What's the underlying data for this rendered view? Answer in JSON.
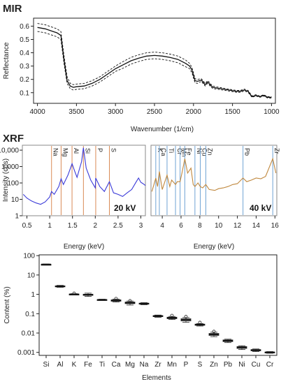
{
  "chart_data": [
    {
      "type": "line",
      "title": "MIR",
      "xlabel": "Wavenumber (1/cm)",
      "ylabel": "Reflectance",
      "xlim": [
        4050,
        950
      ],
      "ylim": [
        0.02,
        0.66
      ],
      "xticks": [
        4000,
        3500,
        3000,
        2500,
        2000,
        1500,
        1000
      ],
      "yticks": [
        0.1,
        0.2,
        0.3,
        0.4,
        0.5,
        0.6
      ],
      "series": [
        {
          "style": "solid",
          "x": [
            4000,
            3900,
            3800,
            3750,
            3700,
            3660,
            3620,
            3580,
            3540,
            3500,
            3400,
            3300,
            3200,
            3100,
            3000,
            2900,
            2800,
            2700,
            2600,
            2500,
            2400,
            2300,
            2200,
            2100,
            2050,
            2020,
            2000,
            1980,
            1950,
            1900,
            1850,
            1820,
            1800,
            1780,
            1750,
            1700,
            1650,
            1600,
            1550,
            1500,
            1450,
            1400,
            1350,
            1300,
            1250,
            1200,
            1150,
            1100,
            1050,
            1000
          ],
          "y": [
            0.59,
            0.58,
            0.56,
            0.55,
            0.53,
            0.35,
            0.19,
            0.15,
            0.14,
            0.145,
            0.15,
            0.17,
            0.2,
            0.24,
            0.28,
            0.31,
            0.34,
            0.36,
            0.375,
            0.38,
            0.375,
            0.365,
            0.35,
            0.32,
            0.3,
            0.27,
            0.23,
            0.19,
            0.185,
            0.195,
            0.16,
            0.18,
            0.17,
            0.155,
            0.14,
            0.135,
            0.13,
            0.125,
            0.12,
            0.115,
            0.11,
            0.11,
            0.12,
            0.11,
            0.07,
            0.08,
            0.07,
            0.08,
            0.065,
            0.065
          ]
        },
        {
          "style": "dashed",
          "x": [
            4000,
            3900,
            3800,
            3750,
            3700,
            3660,
            3620,
            3580,
            3540,
            3500,
            3400,
            3300,
            3200,
            3100,
            3000,
            2900,
            2800,
            2700,
            2600,
            2500,
            2400,
            2300,
            2200,
            2100,
            2050,
            2020,
            2000,
            1980,
            1950,
            1900,
            1850,
            1820,
            1800,
            1780,
            1750,
            1700,
            1650,
            1600,
            1550,
            1500,
            1450,
            1400,
            1350,
            1300,
            1250,
            1200,
            1150,
            1100,
            1050,
            1000
          ],
          "y": [
            0.62,
            0.61,
            0.59,
            0.58,
            0.56,
            0.38,
            0.22,
            0.17,
            0.16,
            0.165,
            0.17,
            0.19,
            0.22,
            0.26,
            0.3,
            0.335,
            0.365,
            0.385,
            0.4,
            0.405,
            0.4,
            0.39,
            0.375,
            0.345,
            0.32,
            0.29,
            0.25,
            0.205,
            0.2,
            0.205,
            0.17,
            0.19,
            0.18,
            0.165,
            0.15,
            0.143,
            0.138,
            0.132,
            0.127,
            0.122,
            0.117,
            0.117,
            0.127,
            0.117,
            0.075,
            0.085,
            0.075,
            0.085,
            0.07,
            0.07
          ]
        },
        {
          "style": "dashed",
          "x": [
            4000,
            3900,
            3800,
            3750,
            3700,
            3660,
            3620,
            3580,
            3540,
            3500,
            3400,
            3300,
            3200,
            3100,
            3000,
            2900,
            2800,
            2700,
            2600,
            2500,
            2400,
            2300,
            2200,
            2100,
            2050,
            2020,
            2000,
            1980,
            1950,
            1900,
            1850,
            1820,
            1800,
            1780,
            1750,
            1700,
            1650,
            1600,
            1550,
            1500,
            1450,
            1400,
            1350,
            1300,
            1250,
            1200,
            1150,
            1100,
            1050,
            1000
          ],
          "y": [
            0.56,
            0.55,
            0.53,
            0.52,
            0.5,
            0.32,
            0.17,
            0.13,
            0.12,
            0.125,
            0.13,
            0.15,
            0.18,
            0.22,
            0.26,
            0.285,
            0.315,
            0.335,
            0.35,
            0.355,
            0.35,
            0.34,
            0.325,
            0.295,
            0.28,
            0.25,
            0.21,
            0.175,
            0.17,
            0.185,
            0.15,
            0.17,
            0.16,
            0.145,
            0.13,
            0.127,
            0.122,
            0.118,
            0.113,
            0.108,
            0.103,
            0.103,
            0.113,
            0.103,
            0.065,
            0.075,
            0.065,
            0.075,
            0.06,
            0.06
          ]
        }
      ]
    },
    {
      "type": "line",
      "title": "XRF",
      "ylabel": "Intensity (cps)",
      "xlabel": "Energy (keV)",
      "yscale": "log",
      "ylim": [
        1,
        20000
      ],
      "yticks": [
        "1",
        "10",
        "100",
        "1,000",
        "10,000"
      ],
      "yticks_values": [
        1,
        10,
        100,
        1000,
        10000
      ],
      "panels": [
        {
          "annotation": "20 kV",
          "xlim": [
            0.4,
            3.1
          ],
          "xticks": [
            0.5,
            1,
            1.5,
            2,
            2.5,
            3
          ],
          "xtick_labels": [
            "0.5",
            "1",
            "1.5",
            "2",
            "2.5",
            "3"
          ],
          "line_color": "#3a3ad8",
          "marker_color": "#d98a55",
          "element_markers": [
            {
              "label": "Na",
              "x": 1.04
            },
            {
              "label": "Mg",
              "x": 1.25
            },
            {
              "label": "Al",
              "x": 1.49
            },
            {
              "label": "Si",
              "x": 1.74
            },
            {
              "label": "P",
              "x": 2.01
            },
            {
              "label": "S",
              "x": 2.31
            }
          ],
          "x": [
            0.42,
            0.5,
            0.6,
            0.7,
            0.8,
            0.9,
            1.0,
            1.04,
            1.1,
            1.2,
            1.25,
            1.3,
            1.4,
            1.49,
            1.55,
            1.6,
            1.7,
            1.74,
            1.8,
            1.9,
            2.0,
            2.01,
            2.1,
            2.2,
            2.31,
            2.4,
            2.5,
            2.6,
            2.7,
            2.8,
            2.9,
            2.95,
            3.0,
            3.05,
            3.1
          ],
          "y": [
            20,
            12,
            8,
            6,
            5,
            7,
            14,
            30,
            20,
            60,
            180,
            80,
            300,
            1500,
            500,
            220,
            2000,
            14000,
            800,
            150,
            50,
            200,
            60,
            30,
            120,
            25,
            20,
            15,
            25,
            40,
            120,
            200,
            110,
            90,
            70
          ]
        },
        {
          "annotation": "40 kV",
          "xlim": [
            2.8,
            16.2
          ],
          "xticks": [
            4,
            6,
            8,
            10,
            12,
            14,
            16
          ],
          "xtick_labels": [
            "4",
            "6",
            "8",
            "10",
            "12",
            "14",
            "16"
          ],
          "line_color": "#c0883e",
          "marker_color": "#6fa3d4",
          "element_markers": [
            {
              "label": "K",
              "x": 3.31
            },
            {
              "label": "Ca",
              "x": 3.69
            },
            {
              "label": "Ti",
              "x": 4.51
            },
            {
              "label": "Cr",
              "x": 5.41
            },
            {
              "label": "Mn",
              "x": 5.9
            },
            {
              "label": "Fe",
              "x": 6.4
            },
            {
              "label": "Ni",
              "x": 7.48
            },
            {
              "label": "Cu",
              "x": 8.05
            },
            {
              "label": "Zn",
              "x": 8.64
            },
            {
              "label": "Pb",
              "x": 12.6
            },
            {
              "label": "Zr",
              "x": 15.77
            }
          ],
          "x": [
            2.9,
            3.31,
            3.5,
            3.69,
            4.0,
            4.51,
            4.8,
            5.0,
            5.41,
            5.6,
            5.9,
            6.1,
            6.4,
            6.7,
            7.06,
            7.3,
            7.48,
            7.8,
            8.05,
            8.3,
            8.64,
            9.0,
            9.6,
            10.0,
            10.5,
            11.0,
            11.5,
            12.0,
            12.6,
            13.0,
            13.5,
            14.0,
            14.5,
            15.0,
            15.77,
            16.1
          ],
          "y": [
            30,
            200,
            60,
            500,
            40,
            300,
            60,
            150,
            80,
            120,
            120,
            400,
            3000,
            400,
            800,
            80,
            60,
            100,
            60,
            50,
            80,
            40,
            35,
            45,
            50,
            60,
            80,
            90,
            200,
            120,
            150,
            200,
            180,
            250,
            3000,
            400
          ]
        }
      ]
    },
    {
      "type": "boxplot",
      "xlabel": "Elements",
      "ylabel": "Content (%)",
      "yscale": "log",
      "ylim": [
        0.0007,
        110
      ],
      "yticks": [
        "100",
        "10",
        "1",
        "0.1",
        "0.01",
        "0.001"
      ],
      "yticks_values": [
        100,
        10,
        1,
        0.1,
        0.01,
        0.001
      ],
      "categories": [
        "Si",
        "Al",
        "K",
        "Fe",
        "Ti",
        "Ca",
        "Mg",
        "Na",
        "Zr",
        "Mn",
        "P",
        "S",
        "Zn",
        "Pb",
        "Ni",
        "Cu",
        "Cr"
      ],
      "median": [
        35,
        2.6,
        1.0,
        0.95,
        0.52,
        0.48,
        0.36,
        0.33,
        0.075,
        0.06,
        0.048,
        0.027,
        0.0085,
        0.004,
        0.0018,
        0.0013,
        0.001
      ],
      "q1": [
        34,
        2.45,
        0.96,
        0.88,
        0.5,
        0.44,
        0.33,
        0.31,
        0.07,
        0.055,
        0.042,
        0.025,
        0.0075,
        0.0036,
        0.0016,
        0.0012,
        0.00095
      ],
      "q3": [
        36,
        2.75,
        1.04,
        1.02,
        0.54,
        0.52,
        0.4,
        0.35,
        0.08,
        0.066,
        0.055,
        0.029,
        0.0095,
        0.0044,
        0.002,
        0.0014,
        0.00105
      ],
      "whisker_low": [
        33,
        2.3,
        0.93,
        0.78,
        0.48,
        0.4,
        0.28,
        0.29,
        0.065,
        0.05,
        0.036,
        0.023,
        0.0065,
        0.0032,
        0.0014,
        0.0011,
        0.0009
      ],
      "whisker_high": [
        37,
        2.9,
        1.08,
        1.15,
        0.56,
        0.57,
        0.45,
        0.37,
        0.085,
        0.072,
        0.063,
        0.031,
        0.011,
        0.0048,
        0.0022,
        0.0015,
        0.0011
      ],
      "outliers": [
        {
          "category": "K",
          "value": 1.12
        },
        {
          "category": "Ca",
          "value": 0.6
        },
        {
          "category": "Mg",
          "value": 0.46
        },
        {
          "category": "Mn",
          "value": 0.08
        },
        {
          "category": "P",
          "value": 0.07
        },
        {
          "category": "S",
          "value": 0.035
        },
        {
          "category": "Zn",
          "value": 0.012
        }
      ]
    }
  ]
}
